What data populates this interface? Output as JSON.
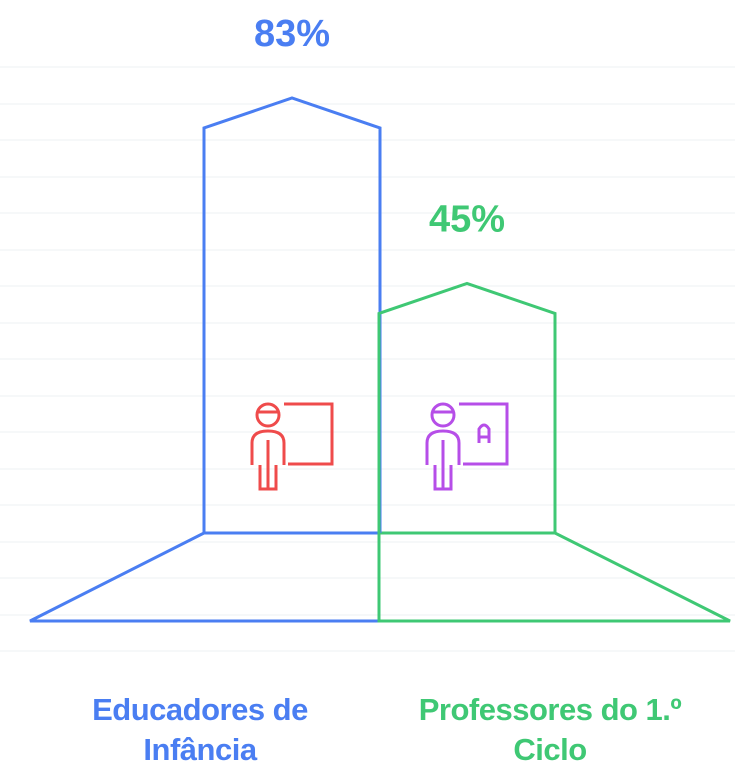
{
  "chart_data": {
    "type": "bar",
    "categories": [
      "Educadores de Infância",
      "Professores do 1.º Ciclo"
    ],
    "values": [
      83,
      45
    ],
    "value_labels": [
      "83%",
      "45%"
    ],
    "colors": [
      "#4a7ef2",
      "#3fc874"
    ]
  }
}
